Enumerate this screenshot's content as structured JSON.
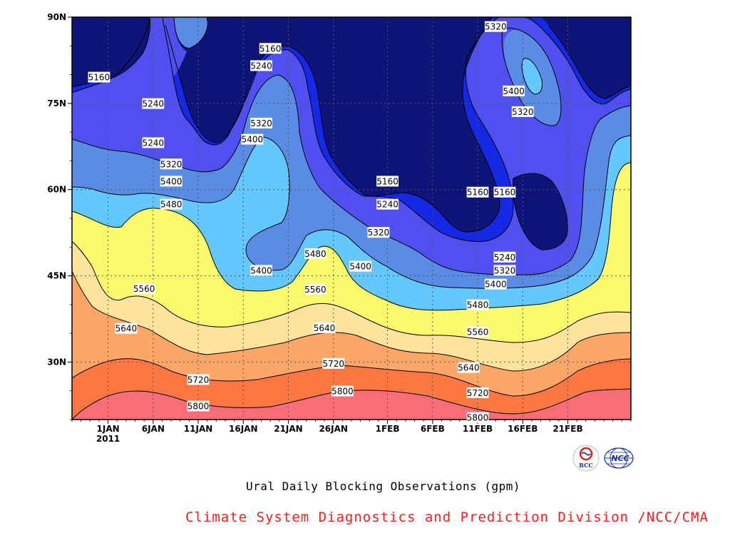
{
  "chart_data": {
    "type": "contour",
    "subtitle": "Ural Daily Blocking Observations (gpm)",
    "footer": "Climate System Diagnostics and Prediction Division /NCC/CMA",
    "x_ticks": [
      "1JAN",
      "6JAN",
      "11JAN",
      "16JAN",
      "21JAN",
      "26JAN",
      "1FEB",
      "6FEB",
      "11FEB",
      "16FEB",
      "21FEB"
    ],
    "x_year": "2011",
    "y_ticks": [
      "30N",
      "45N",
      "60N",
      "75N",
      "90N"
    ],
    "x_range": [
      "2010-12-28",
      "2011-02-28"
    ],
    "y_range_deg": [
      20,
      90
    ],
    "grid": true,
    "levels": [
      5160,
      5240,
      5320,
      5400,
      5480,
      5560,
      5640,
      5720,
      5800
    ],
    "level_colors": {
      "below_5160": "#0f1478",
      "5160_5240": "#1428e6",
      "5240_5320": "#5050f0",
      "5320_5400": "#5a8ce6",
      "5400_5480": "#64c8ff",
      "5480_5560": "#fafa6e",
      "5560_5640": "#fde39c",
      "5640_5720": "#fca768",
      "5720_5800": "#fc7742",
      "above_5800": "#f86e78"
    },
    "contour_labels": [
      {
        "value": "5160",
        "date": "2010-12-31",
        "lat": 79.5
      },
      {
        "value": "5240",
        "date": "2011-01-06",
        "lat": 74.9
      },
      {
        "value": "5240",
        "date": "2011-01-06",
        "lat": 68.1
      },
      {
        "value": "5320",
        "date": "2011-01-08",
        "lat": 64.4
      },
      {
        "value": "5400",
        "date": "2011-01-08",
        "lat": 61.4
      },
      {
        "value": "5480",
        "date": "2011-01-08",
        "lat": 57.4
      },
      {
        "value": "5560",
        "date": "2011-01-05",
        "lat": 42.7
      },
      {
        "value": "5640",
        "date": "2011-01-03",
        "lat": 35.8
      },
      {
        "value": "5720",
        "date": "2011-01-11",
        "lat": 26.9
      },
      {
        "value": "5800",
        "date": "2011-01-11",
        "lat": 22.3
      },
      {
        "value": "5160",
        "date": "2011-01-19",
        "lat": 84.5
      },
      {
        "value": "5240",
        "date": "2011-01-18",
        "lat": 81.5
      },
      {
        "value": "5320",
        "date": "2011-01-18",
        "lat": 71.5
      },
      {
        "value": "5400",
        "date": "2011-01-17",
        "lat": 68.7
      },
      {
        "value": "5400",
        "date": "2011-01-18",
        "lat": 45.9
      },
      {
        "value": "5480",
        "date": "2011-01-24",
        "lat": 48.8
      },
      {
        "value": "5560",
        "date": "2011-01-24",
        "lat": 42.6
      },
      {
        "value": "5640",
        "date": "2011-01-25",
        "lat": 35.9
      },
      {
        "value": "5720",
        "date": "2011-01-26",
        "lat": 29.7
      },
      {
        "value": "5800",
        "date": "2011-01-27",
        "lat": 24.9
      },
      {
        "value": "5160",
        "date": "2011-02-01",
        "lat": 61.4
      },
      {
        "value": "5240",
        "date": "2011-02-01",
        "lat": 57.4
      },
      {
        "value": "5320",
        "date": "2011-01-31",
        "lat": 52.5
      },
      {
        "value": "5400",
        "date": "2011-01-29",
        "lat": 46.6
      },
      {
        "value": "5320",
        "date": "2011-02-13",
        "lat": 88.3
      },
      {
        "value": "5400",
        "date": "2011-02-15",
        "lat": 77.1
      },
      {
        "value": "5320",
        "date": "2011-02-16",
        "lat": 73.5
      },
      {
        "value": "5160",
        "date": "2011-02-11",
        "lat": 59.5
      },
      {
        "value": "5160",
        "date": "2011-02-14",
        "lat": 59.5
      },
      {
        "value": "5240",
        "date": "2011-02-14",
        "lat": 48.2
      },
      {
        "value": "5320",
        "date": "2011-02-14",
        "lat": 45.9
      },
      {
        "value": "5400",
        "date": "2011-02-13",
        "lat": 43.5
      },
      {
        "value": "5480",
        "date": "2011-02-11",
        "lat": 39.9
      },
      {
        "value": "5560",
        "date": "2011-02-11",
        "lat": 35.2
      },
      {
        "value": "5640",
        "date": "2011-02-10",
        "lat": 29.0
      },
      {
        "value": "5720",
        "date": "2011-02-11",
        "lat": 24.6
      },
      {
        "value": "5800",
        "date": "2011-02-11",
        "lat": 20.3
      }
    ]
  },
  "logos": {
    "bcc_text": "BCC",
    "ncc_text": "NCC"
  }
}
